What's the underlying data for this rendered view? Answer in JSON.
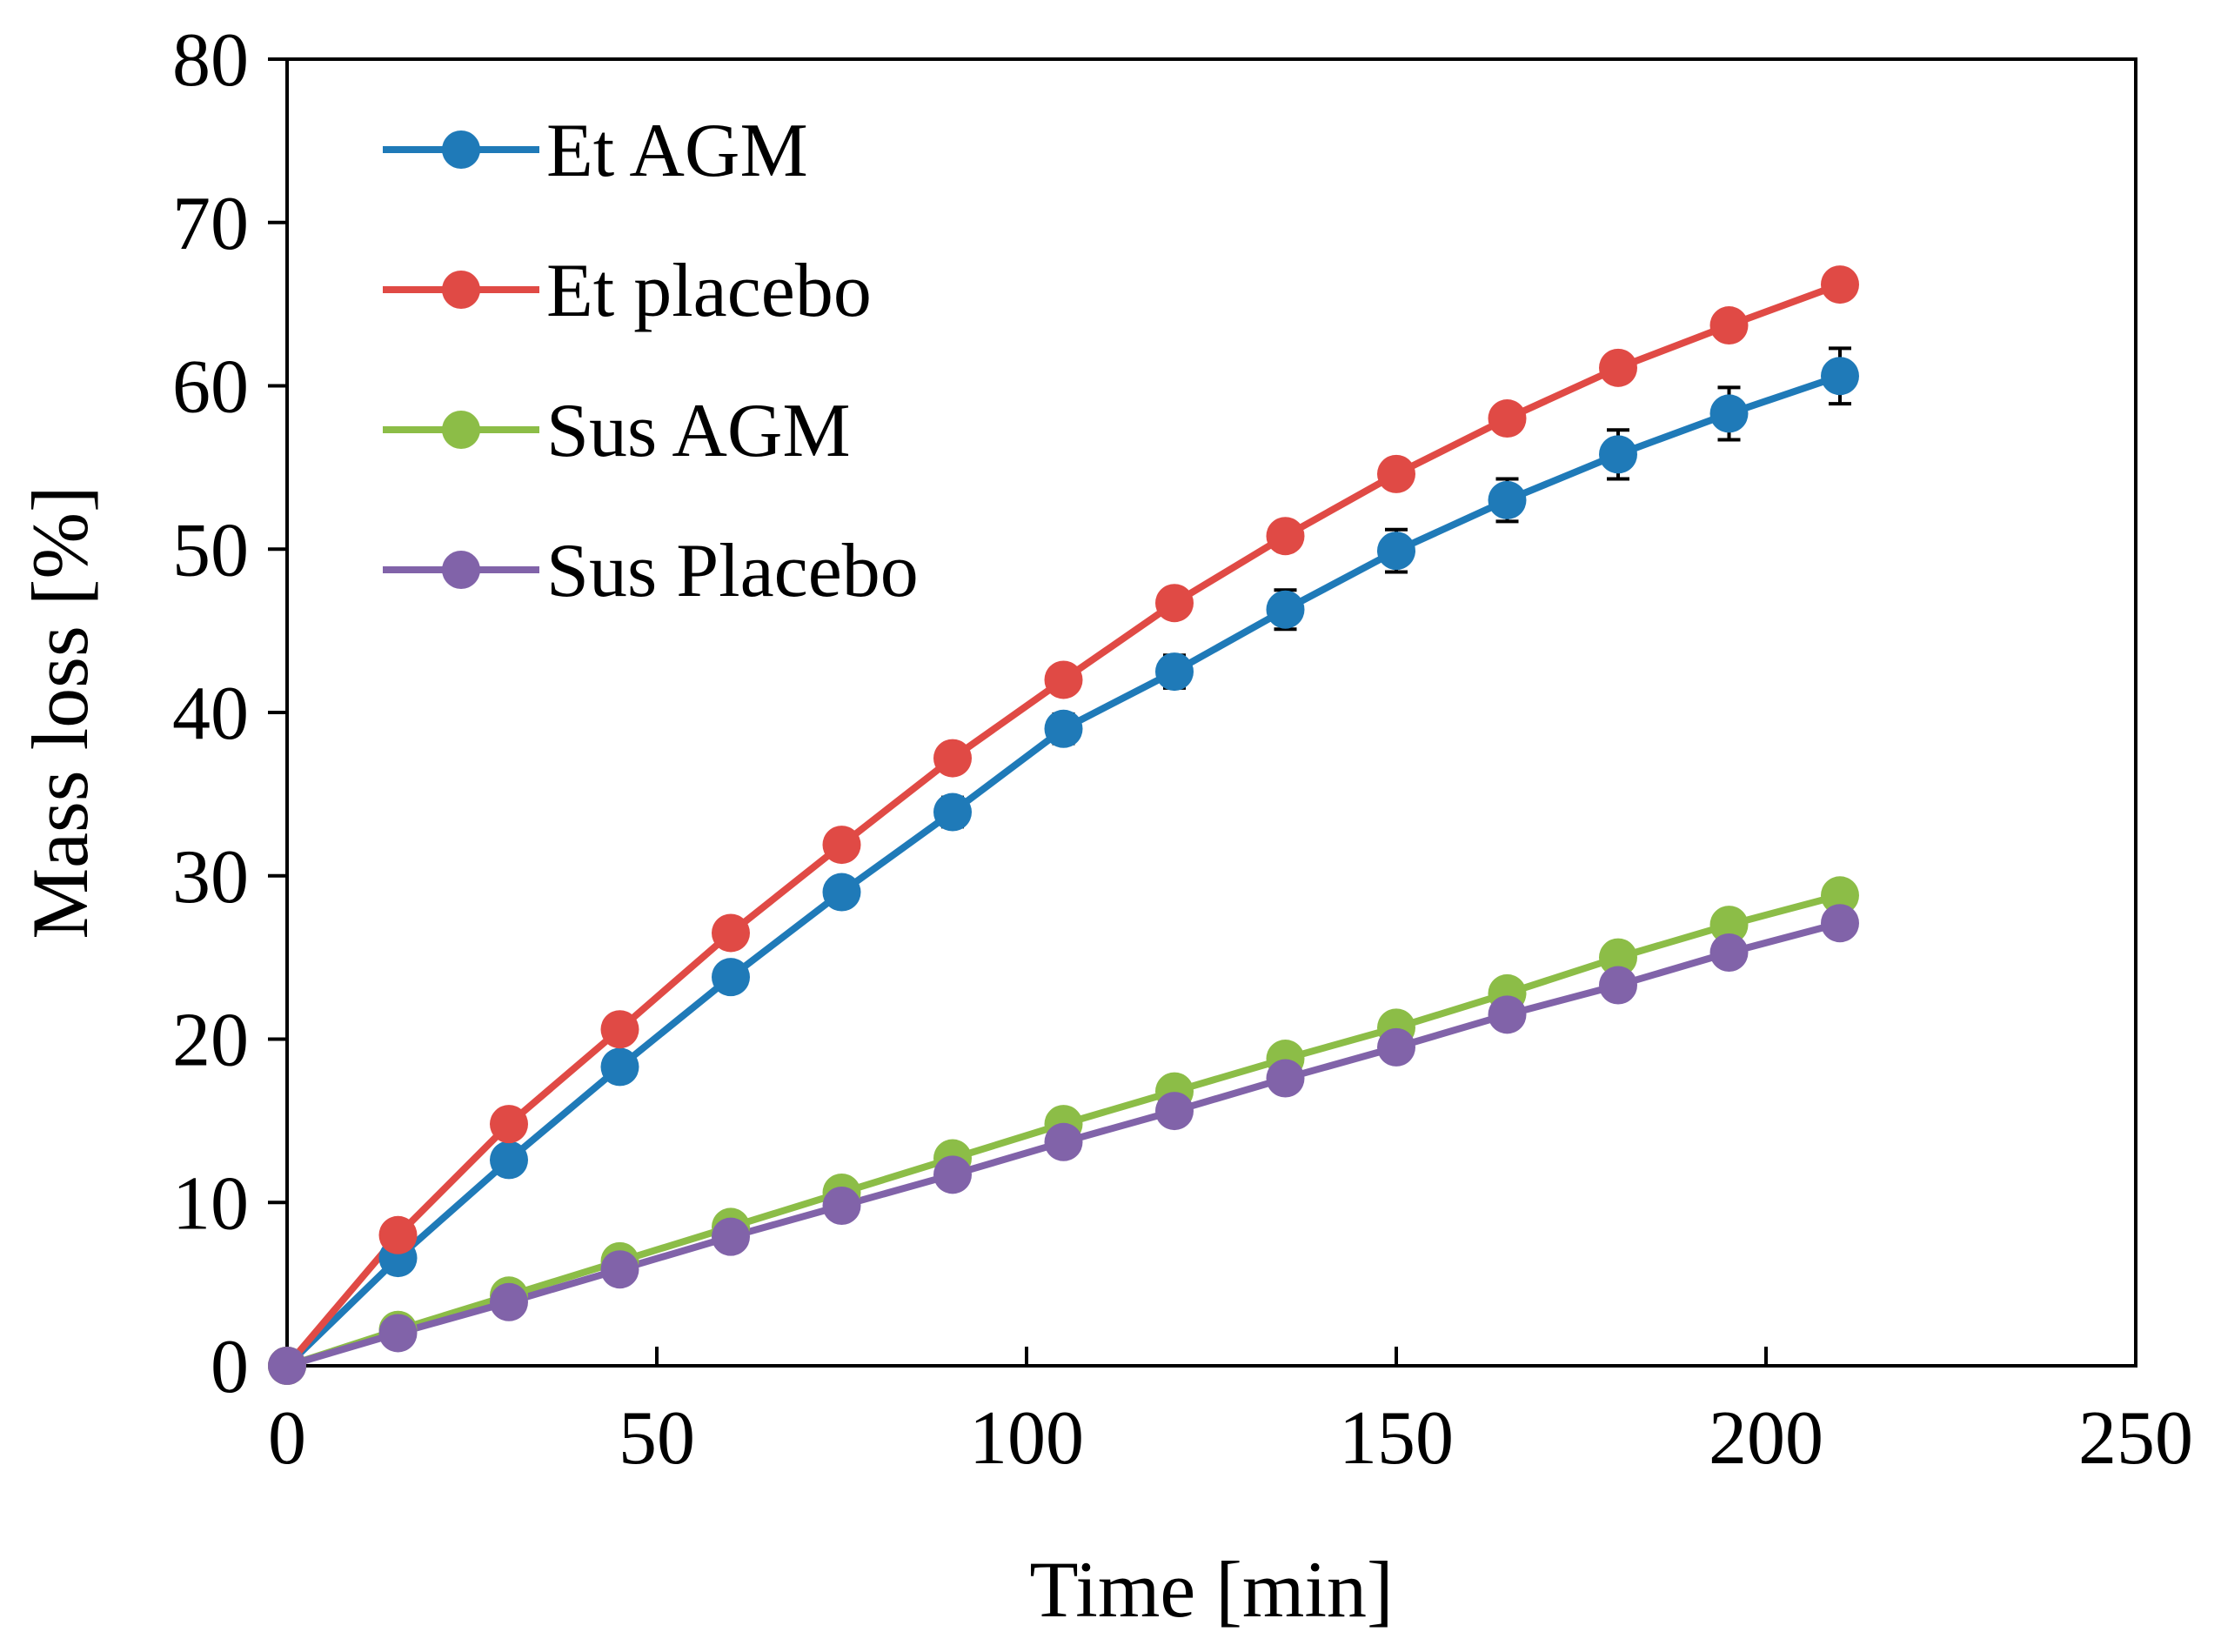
{
  "chart_data": {
    "type": "line",
    "title": "",
    "xlabel": "Time [min]",
    "ylabel": "Mass loss [%]",
    "xlim": [
      0,
      250
    ],
    "ylim": [
      0,
      80
    ],
    "xticks": [
      0,
      50,
      100,
      150,
      200,
      250
    ],
    "yticks": [
      0,
      10,
      20,
      30,
      40,
      50,
      60,
      70,
      80
    ],
    "grid": false,
    "legend_position": "top-left",
    "x": [
      0,
      15,
      30,
      45,
      60,
      75,
      90,
      105,
      120,
      135,
      150,
      165,
      180,
      195,
      210
    ],
    "series": [
      {
        "name": "Et AGM",
        "color": "#1f7ab8",
        "values": [
          0,
          6.6,
          12.6,
          18.3,
          23.8,
          29.0,
          33.9,
          39.0,
          42.5,
          46.3,
          49.9,
          53.0,
          55.8,
          58.3,
          60.6
        ],
        "errors": [
          0,
          0.4,
          0.6,
          0.7,
          0.8,
          0.8,
          0.9,
          0.9,
          1.0,
          1.2,
          1.3,
          1.3,
          1.5,
          1.6,
          1.7
        ]
      },
      {
        "name": "Et placebo",
        "color": "#e04a45",
        "values": [
          0,
          8.0,
          14.8,
          20.6,
          26.5,
          31.9,
          37.2,
          42.0,
          46.7,
          50.8,
          54.6,
          58.0,
          61.1,
          63.7,
          66.2
        ],
        "errors": [
          0,
          0.3,
          0.4,
          0.4,
          0.4,
          0.4,
          0.4,
          0.4,
          0.4,
          0.4,
          0.4,
          0.4,
          0.4,
          0.4,
          0.4
        ]
      },
      {
        "name": "Sus AGM",
        "color": "#8cbd47",
        "values": [
          0,
          2.2,
          4.3,
          6.4,
          8.5,
          10.6,
          12.7,
          14.8,
          16.8,
          18.8,
          20.7,
          22.8,
          25.0,
          27.0,
          28.8
        ],
        "errors": [
          0,
          0.2,
          0.2,
          0.2,
          0.2,
          0.2,
          0.2,
          0.2,
          0.2,
          0.2,
          0.2,
          0.2,
          0.2,
          0.2,
          0.2
        ]
      },
      {
        "name": "Sus Placebo",
        "color": "#8163a9",
        "values": [
          0,
          2.0,
          3.9,
          5.9,
          7.9,
          9.8,
          11.7,
          13.7,
          15.6,
          17.6,
          19.5,
          21.5,
          23.3,
          25.3,
          27.1
        ],
        "errors": [
          0,
          0.2,
          0.2,
          0.2,
          0.2,
          0.2,
          0.2,
          0.2,
          0.2,
          0.2,
          0.2,
          0.2,
          0.2,
          0.2,
          0.2
        ]
      }
    ]
  }
}
